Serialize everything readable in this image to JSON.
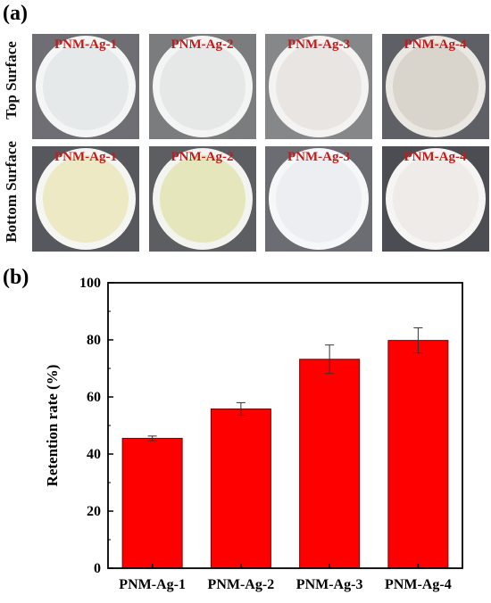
{
  "panel_a": {
    "label": "(a)",
    "row_labels": [
      "Top Surface",
      "Bottom Surface"
    ],
    "photos": [
      {
        "tag": "PNM-Ag-1",
        "bg": "#6e6e74",
        "disc": "#e6e9ea",
        "ring": "#f4f5f5"
      },
      {
        "tag": "PNM-Ag-2",
        "bg": "#7a7c7e",
        "disc": "#e5e8e6",
        "ring": "#f3f4f3"
      },
      {
        "tag": "PNM-Ag-3",
        "bg": "#858789",
        "disc": "#e8e5e3",
        "ring": "#f5f3f2"
      },
      {
        "tag": "PNM-Ag-4",
        "bg": "#5f6066",
        "disc": "#d9d4cc",
        "ring": "#ebe8e3"
      },
      {
        "tag": "PNM-Ag-1",
        "bg": "#56585e",
        "disc": "#ece9c4",
        "ring": "#f5f5f2"
      },
      {
        "tag": "PNM-Ag-2",
        "bg": "#5c5e62",
        "disc": "#e6e6bd",
        "ring": "#f3f3ef"
      },
      {
        "tag": "PNM-Ag-3",
        "bg": "#6b6d73",
        "disc": "#eceef2",
        "ring": "#f6f7f8"
      },
      {
        "tag": "PNM-Ag-4",
        "bg": "#4b4d53",
        "disc": "#eeebe8",
        "ring": "#f6f5f3"
      }
    ]
  },
  "panel_b": {
    "label": "(b)"
  },
  "chart_data": {
    "type": "bar",
    "categories": [
      "PNM-Ag-1",
      "PNM-Ag-2",
      "PNM-Ag-3",
      "PNM-Ag-4"
    ],
    "values": [
      45.5,
      55.8,
      73.2,
      79.8
    ],
    "errors": [
      0.8,
      2.2,
      5.0,
      4.4
    ],
    "ylabel": "Retention rate (%)",
    "xlabel": "",
    "ylim": [
      0,
      100
    ],
    "yticks": [
      0,
      20,
      40,
      60,
      80,
      100
    ],
    "bar_color": "#ff0000",
    "grid": false
  }
}
